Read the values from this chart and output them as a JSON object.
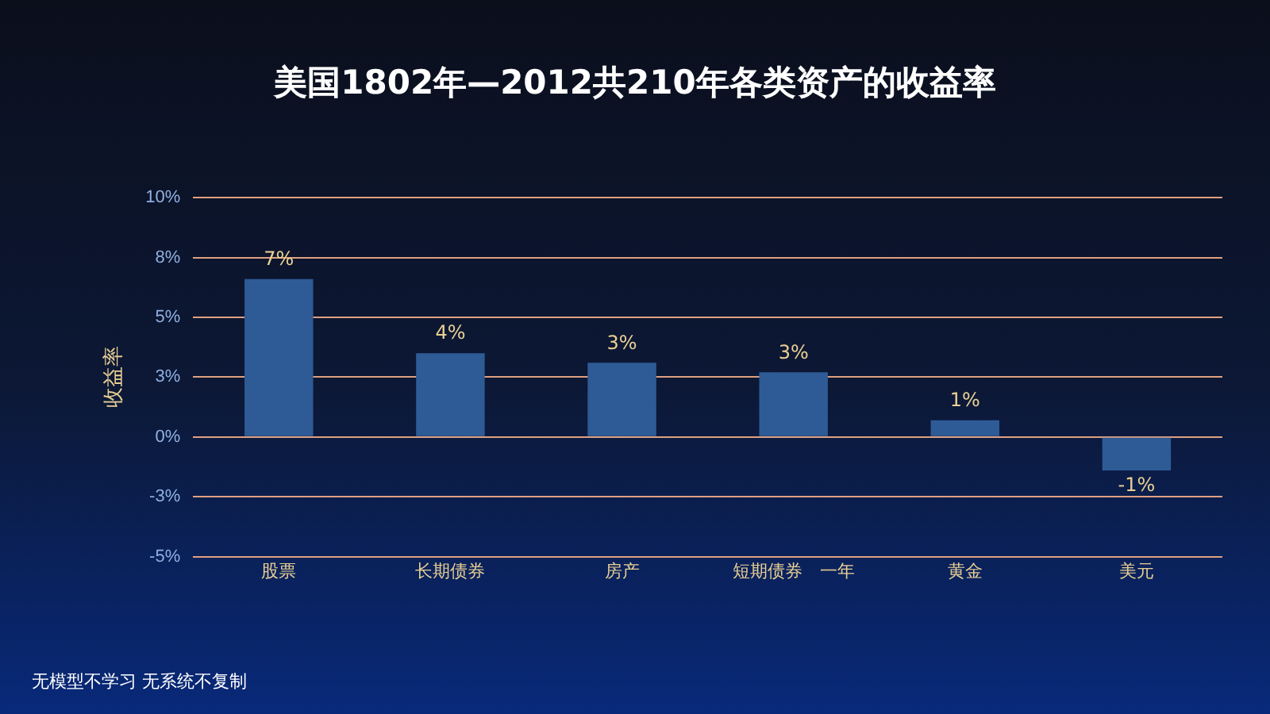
{
  "chart_data": {
    "type": "bar",
    "title": "美国1802年—2012共210年各类资产的收益率",
    "ylabel": "收益率",
    "categories": [
      "股票",
      "长期债券",
      "房产",
      "短期债券　一年",
      "黄金",
      "美元"
    ],
    "values": [
      6.6,
      3.5,
      3.1,
      2.7,
      0.7,
      -1.4
    ],
    "value_labels": [
      "7%",
      "4%",
      "3%",
      "3%",
      "1%",
      "-1%"
    ],
    "color": "#2e5b96",
    "ylim": [
      -5,
      10
    ],
    "yticks": [
      {
        "value": -5,
        "label": "-5%"
      },
      {
        "value": -2.5,
        "label": "-3%"
      },
      {
        "value": 0,
        "label": "0%"
      },
      {
        "value": 2.5,
        "label": "3%"
      },
      {
        "value": 5,
        "label": "5%"
      },
      {
        "value": 7.5,
        "label": "8%"
      },
      {
        "value": 10,
        "label": "10%"
      }
    ],
    "grid": "y",
    "annotations": [
      "无模型不学习  无系统不复制"
    ]
  }
}
